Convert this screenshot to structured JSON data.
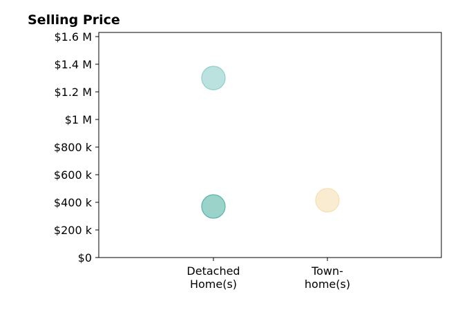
{
  "chart_data": {
    "type": "scatter",
    "title": "Selling Price",
    "xlabel": "",
    "ylabel": "",
    "categories": [
      [
        "Detached",
        "Home(s)"
      ],
      [
        "Town-",
        "home(s)"
      ]
    ],
    "ylim": [
      0,
      1630000
    ],
    "yticks": [
      {
        "value": 0,
        "label": "$0"
      },
      {
        "value": 200000,
        "label": "$200 k"
      },
      {
        "value": 400000,
        "label": "$400 k"
      },
      {
        "value": 600000,
        "label": "$600 k"
      },
      {
        "value": 800000,
        "label": "$800 k"
      },
      {
        "value": 1000000,
        "label": "$1 M"
      },
      {
        "value": 1200000,
        "label": "$1.2 M"
      },
      {
        "value": 1400000,
        "label": "$1.4 M"
      },
      {
        "value": 1600000,
        "label": "$1.6 M"
      }
    ],
    "points": [
      {
        "category": 0,
        "value": 1300000,
        "color": "#8ecfc9"
      },
      {
        "category": 0,
        "value": 370000,
        "color": "#58b5a9"
      },
      {
        "category": 1,
        "value": 415000,
        "color": "#f5dfb2"
      }
    ],
    "grid": false,
    "legend": "none"
  }
}
